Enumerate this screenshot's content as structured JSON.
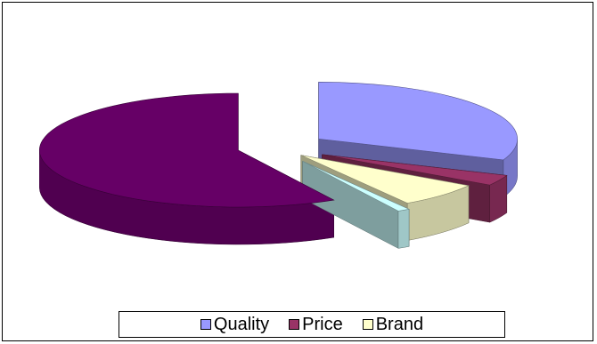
{
  "chart_data": {
    "type": "pie",
    "style": "3d-exploded",
    "slices": [
      {
        "name": "Quality",
        "value": 31,
        "color": "#9999FF"
      },
      {
        "name": "Price",
        "value": 3,
        "color": "#993366"
      },
      {
        "name": "Brand",
        "value": 7,
        "color": "#FFFFCC"
      },
      {
        "name": "",
        "value": 1,
        "color": "#CCFFFF"
      },
      {
        "name": "",
        "value": 58,
        "color": "#660066"
      }
    ],
    "legend": {
      "placement": "bottom",
      "entries": [
        {
          "label": "Quality",
          "color": "#9999FF"
        },
        {
          "label": "Price",
          "color": "#993366"
        },
        {
          "label": "Brand",
          "color": "#FFFFCC"
        }
      ]
    }
  }
}
